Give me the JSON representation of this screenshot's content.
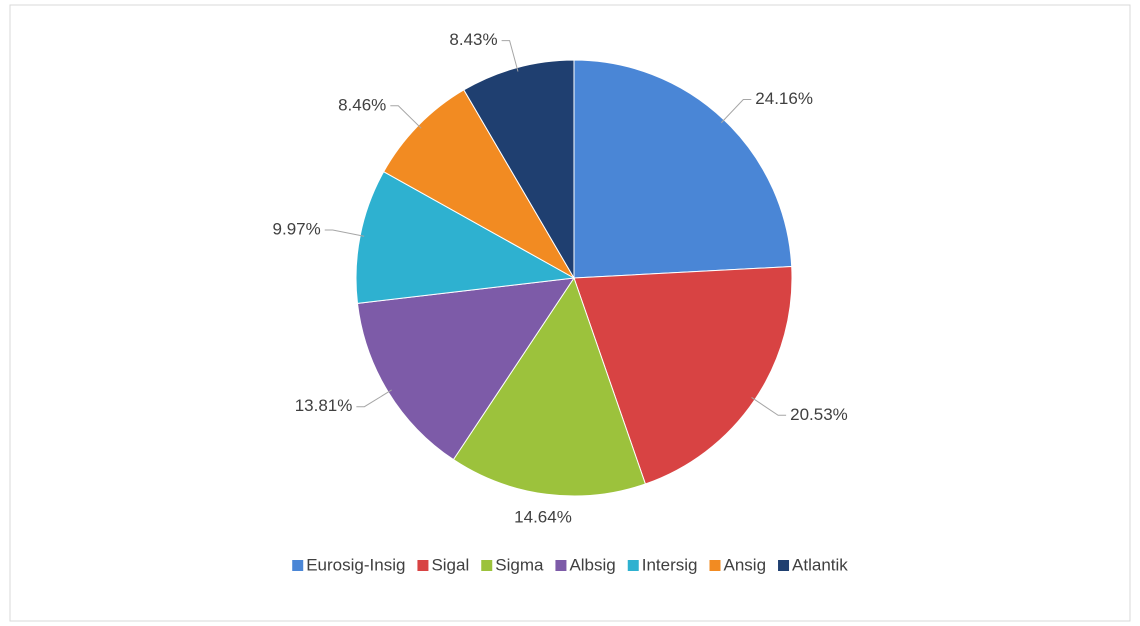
{
  "chart_data": {
    "type": "pie",
    "categories": [
      "Eurosig-Insig",
      "Sigal",
      "Sigma",
      "Albsig",
      "Intersig",
      "Ansig",
      "Atlantik"
    ],
    "values": [
      24.16,
      20.53,
      14.64,
      13.81,
      9.97,
      8.46,
      8.43
    ],
    "value_labels": [
      "24.16%",
      "20.53%",
      "14.64%",
      "13.81%",
      "9.97%",
      "8.46%",
      "8.43%"
    ],
    "colors": [
      "#4a86d6",
      "#d84343",
      "#9cc23c",
      "#7d5ba8",
      "#2eb1d0",
      "#f28b22",
      "#1f3f70"
    ],
    "legend": "bottom"
  }
}
